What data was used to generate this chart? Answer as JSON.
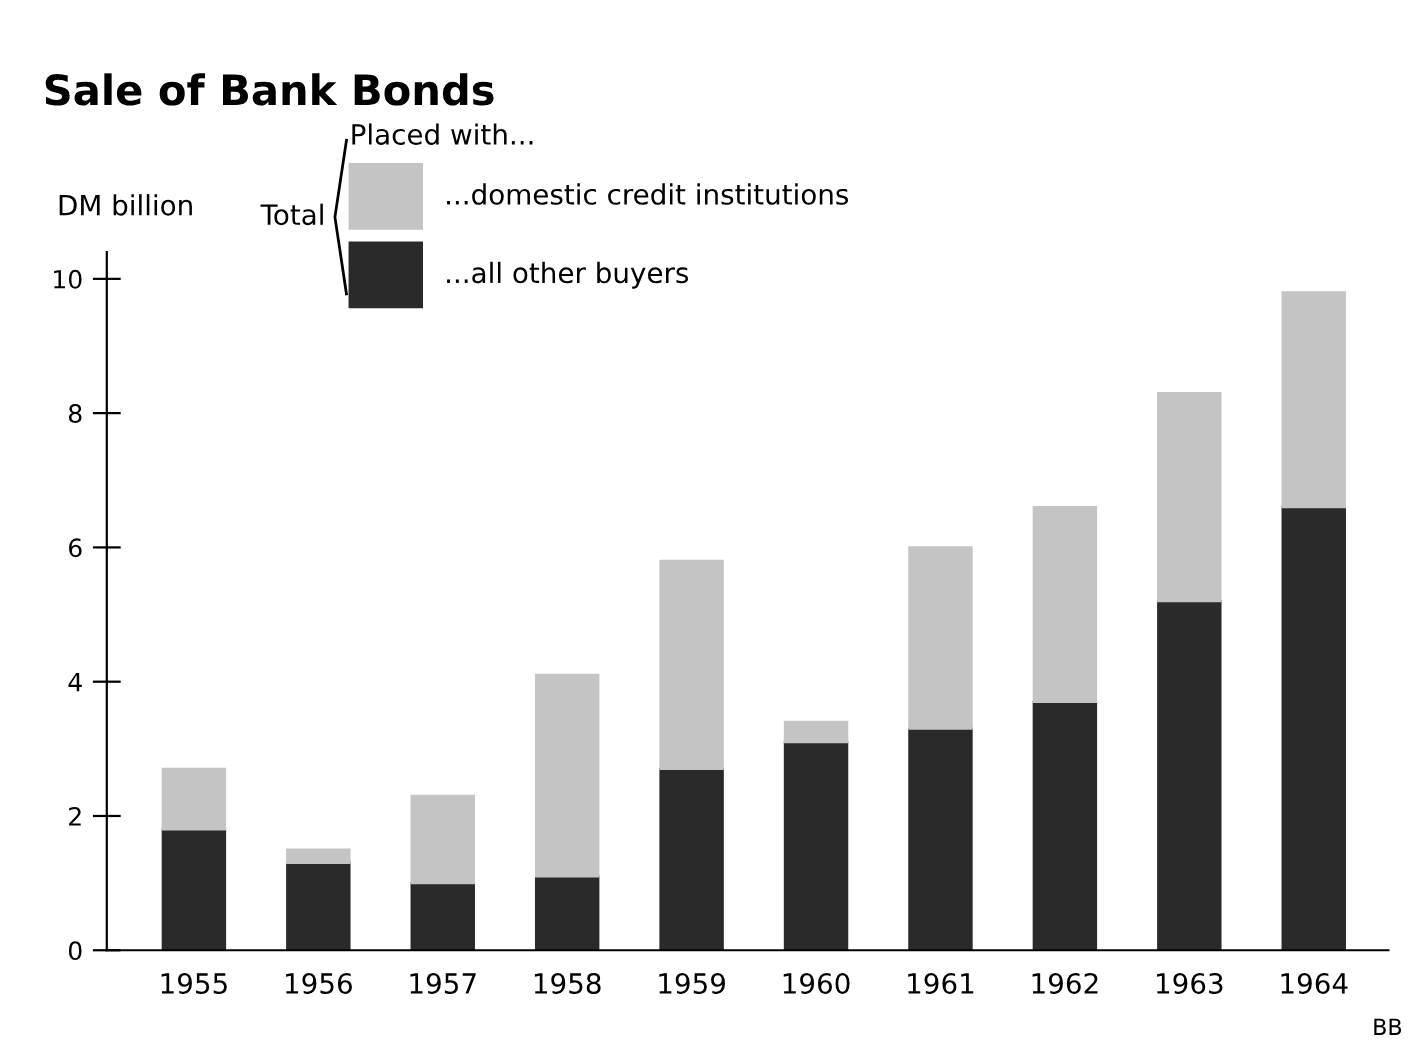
{
  "chart_data": {
    "type": "bar",
    "title": "Sale of Bank Bonds",
    "ylabel": "DM billion",
    "legend_title": "Placed with...",
    "categories": [
      "1955",
      "1956",
      "1957",
      "1958",
      "1959",
      "1960",
      "1961",
      "1962",
      "1963",
      "1964"
    ],
    "stacked": true,
    "series": [
      {
        "name": "...all other buyers",
        "color": "#2a2a2a",
        "values": [
          1.8,
          1.3,
          1.0,
          1.1,
          2.7,
          3.1,
          3.3,
          3.7,
          5.2,
          6.6
        ]
      },
      {
        "name": "...domestic credit institutions",
        "color": "#c4c4c4",
        "values": [
          0.9,
          0.2,
          1.3,
          3.0,
          3.1,
          0.3,
          2.7,
          2.9,
          3.1,
          3.2
        ]
      }
    ],
    "ylim": [
      0,
      10.4
    ],
    "yticks": [
      0,
      2,
      4,
      6,
      8,
      10
    ],
    "grid": false,
    "legend": "top left",
    "annotations": [
      "Total",
      "BB"
    ]
  }
}
